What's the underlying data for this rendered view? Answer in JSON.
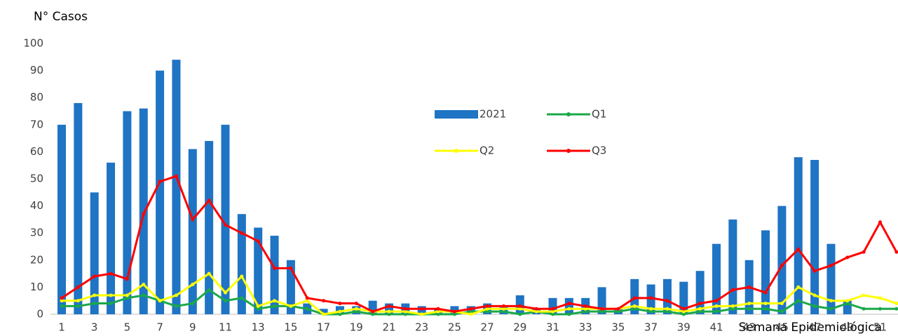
{
  "chart_data": {
    "type": "bar",
    "ylabel": "N° Casos",
    "xlabel": "Semana Epidemiológica",
    "categories": [
      "1",
      null,
      "3",
      null,
      "5",
      null,
      "7",
      null,
      "9",
      null,
      "11",
      null,
      "13",
      null,
      "15",
      null,
      "17",
      null,
      "19",
      null,
      "21",
      null,
      "23",
      null,
      "25",
      null,
      "27",
      null,
      "29",
      null,
      "31",
      null,
      "33",
      null,
      "35",
      null,
      "37",
      null,
      "39",
      null,
      "41",
      null,
      "43",
      null,
      "45",
      null,
      "47",
      null,
      "49",
      null,
      "51",
      null
    ],
    "ylim": [
      0,
      100
    ],
    "yticks": [
      0,
      10,
      20,
      30,
      40,
      50,
      60,
      70,
      80,
      90,
      100
    ],
    "grid": false,
    "series": [
      {
        "name": "2021",
        "type": "bar",
        "color": "#1f74c4",
        "values": [
          70,
          78,
          45,
          56,
          75,
          76,
          90,
          94,
          61,
          64,
          70,
          37,
          32,
          29,
          20,
          4,
          2,
          3,
          3,
          5,
          4,
          4,
          3,
          2,
          3,
          3,
          4,
          3,
          7,
          2,
          6,
          6,
          6,
          10,
          2,
          13,
          11,
          13,
          12,
          16,
          26,
          35,
          20,
          31,
          40,
          58,
          57,
          26,
          5,
          null,
          null,
          null
        ]
      },
      {
        "name": "Q1",
        "type": "line",
        "color": "#1aa84a",
        "values": [
          3,
          3,
          4,
          4,
          6,
          7,
          5,
          3,
          4,
          9,
          5,
          6,
          2,
          3,
          3,
          2,
          0,
          0,
          1,
          0,
          0,
          0,
          0,
          0,
          0,
          1,
          1,
          1,
          0,
          1,
          0,
          0,
          1,
          1,
          1,
          2,
          1,
          1,
          0,
          1,
          1,
          2,
          2,
          2,
          1,
          5,
          3,
          2,
          4,
          2,
          2,
          2
        ]
      },
      {
        "name": "Q2",
        "type": "line",
        "color": "#ffff00",
        "values": [
          5,
          5,
          7,
          7,
          7,
          11,
          5,
          7,
          11,
          15,
          8,
          14,
          3,
          5,
          3,
          5,
          0,
          1,
          2,
          1,
          1,
          1,
          0,
          1,
          1,
          0,
          2,
          2,
          2,
          1,
          1,
          2,
          2,
          2,
          2,
          3,
          2,
          2,
          1,
          2,
          3,
          3,
          4,
          4,
          4,
          10,
          7,
          5,
          5,
          7,
          6,
          4
        ]
      },
      {
        "name": "Q3",
        "type": "line",
        "color": "#ff0000",
        "values": [
          6,
          10,
          14,
          15,
          13,
          37,
          49,
          51,
          35,
          42,
          33,
          30,
          27,
          17,
          17,
          6,
          5,
          4,
          4,
          1,
          3,
          2,
          2,
          2,
          1,
          2,
          3,
          3,
          3,
          2,
          2,
          4,
          3,
          2,
          2,
          6,
          6,
          5,
          2,
          4,
          5,
          9,
          10,
          8,
          18,
          24,
          16,
          18,
          21,
          23,
          34,
          23
        ]
      }
    ]
  }
}
